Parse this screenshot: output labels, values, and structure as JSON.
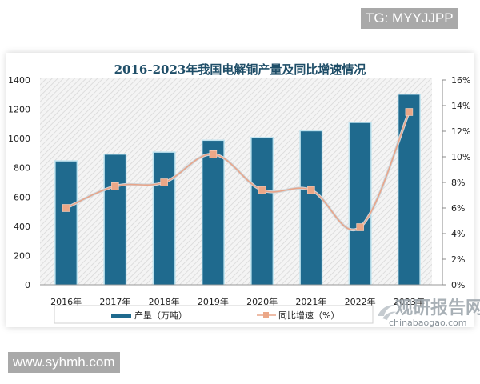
{
  "watermarks": {
    "top_tag": "TG: MYYJJPP",
    "bottom_tag": "www.syhmh.com",
    "logo_cn": "观研报告网",
    "logo_en": "chinabaogao.com"
  },
  "colors": {
    "bar": "#1f6a8e",
    "bar_border": "#bfe3ef",
    "line": "#e8a58a",
    "marker": "#eba787",
    "title": "#1f4e68"
  },
  "chart_data": {
    "type": "bar",
    "title": "2016-2023年我国电解铜产量及同比增速情况",
    "categories": [
      "2016年",
      "2017年",
      "2018年",
      "2019年",
      "2020年",
      "2021年",
      "2022年",
      "2023年"
    ],
    "series": [
      {
        "name": "产量（万吨）",
        "type": "bar",
        "axis": "left",
        "values": [
          843,
          889,
          903,
          984,
          1003,
          1049,
          1106,
          1299
        ]
      },
      {
        "name": "同比增速（%）",
        "type": "line",
        "axis": "right",
        "values": [
          6.0,
          7.7,
          8.0,
          10.2,
          7.4,
          7.4,
          4.5,
          13.5
        ]
      }
    ],
    "xlabel": "",
    "ylabel": "",
    "ylim": [
      0,
      1400
    ],
    "y_ticks": [
      "0",
      "200",
      "400",
      "600",
      "800",
      "1000",
      "1200",
      "1400"
    ],
    "y2lim": [
      0,
      16
    ],
    "y2_ticks": [
      "0%",
      "2%",
      "4%",
      "6%",
      "8%",
      "10%",
      "12%",
      "14%",
      "16%"
    ],
    "grid": false,
    "legend_position": "bottom"
  },
  "legend": {
    "bar_label": "产量（万吨）",
    "line_label": "同比增速（%）"
  }
}
